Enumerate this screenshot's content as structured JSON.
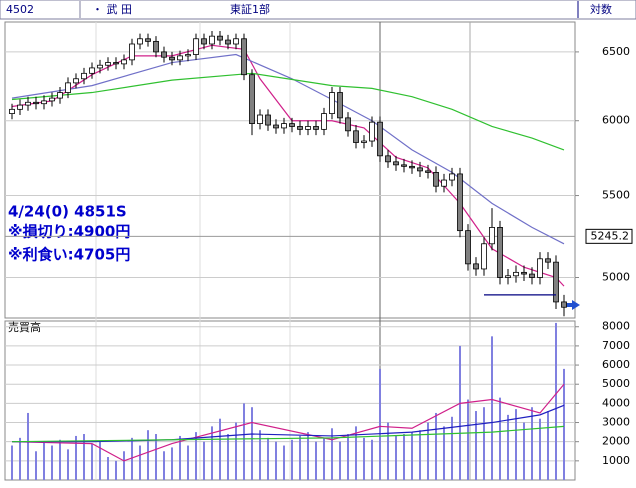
{
  "header": {
    "code": "4502",
    "name": "・ 武 田",
    "market": "東証1部",
    "scale_label": "対数"
  },
  "chart_data": [
    {
      "type": "candlestick",
      "log_scale": true,
      "grid": true,
      "ylim": [
        4770,
        6730
      ],
      "yticks": [
        5000,
        5500,
        6000,
        6500
      ],
      "up_color": "#ffffff",
      "down_color": "#808080",
      "open": [
        6050,
        6080,
        6110,
        6130,
        6120,
        6140,
        6160,
        6200,
        6270,
        6300,
        6340,
        6380,
        6400,
        6420,
        6410,
        6440,
        6560,
        6600,
        6580,
        6500,
        6460,
        6440,
        6470,
        6480,
        6600,
        6560,
        6620,
        6590,
        6560,
        6600,
        6330,
        5980,
        6040,
        5970,
        5950,
        5980,
        5960,
        5940,
        5960,
        5940,
        6050,
        6200,
        6020,
        5930,
        5850,
        5860,
        5990,
        5760,
        5720,
        5700,
        5690,
        5680,
        5660,
        5650,
        5560,
        5600,
        5640,
        5280,
        5080,
        5050,
        5200,
        5300,
        5000,
        5010,
        5030,
        5020,
        5000,
        5110,
        5090,
        4860
      ],
      "high": [
        6120,
        6150,
        6170,
        6170,
        6180,
        6200,
        6240,
        6310,
        6340,
        6380,
        6420,
        6440,
        6460,
        6460,
        6480,
        6600,
        6640,
        6640,
        6620,
        6540,
        6500,
        6510,
        6520,
        6640,
        6640,
        6660,
        6660,
        6630,
        6640,
        6640,
        6370,
        6080,
        6080,
        6010,
        6020,
        6020,
        6000,
        6000,
        6000,
        6090,
        6240,
        6240,
        6060,
        5970,
        5900,
        6030,
        6030,
        5800,
        5760,
        5740,
        5730,
        5720,
        5700,
        5690,
        5640,
        5680,
        5680,
        5320,
        5120,
        5240,
        5420,
        5340,
        5050,
        5070,
        5070,
        5060,
        5150,
        5150,
        5130,
        4900
      ],
      "low": [
        6010,
        6040,
        6070,
        6080,
        6080,
        6100,
        6120,
        6160,
        6230,
        6260,
        6300,
        6340,
        6360,
        6370,
        6370,
        6400,
        6520,
        6540,
        6460,
        6420,
        6400,
        6400,
        6430,
        6440,
        6520,
        6520,
        6550,
        6520,
        6520,
        6290,
        5900,
        5940,
        5930,
        5910,
        5910,
        5920,
        5900,
        5900,
        5900,
        5900,
        6010,
        5980,
        5890,
        5810,
        5810,
        5820,
        5720,
        5680,
        5660,
        5650,
        5640,
        5620,
        5610,
        5520,
        5520,
        5560,
        5240,
        5040,
        5010,
        5010,
        5160,
        4960,
        4960,
        4970,
        4980,
        4960,
        4960,
        5050,
        4820,
        4780
      ],
      "close": [
        6080,
        6110,
        6130,
        6120,
        6140,
        6160,
        6200,
        6270,
        6300,
        6340,
        6380,
        6400,
        6420,
        6410,
        6440,
        6560,
        6600,
        6580,
        6500,
        6460,
        6440,
        6470,
        6480,
        6600,
        6560,
        6620,
        6590,
        6560,
        6600,
        6330,
        5980,
        6040,
        5970,
        5950,
        5980,
        5960,
        5940,
        5960,
        5940,
        6050,
        6200,
        6020,
        5930,
        5850,
        5860,
        5990,
        5760,
        5720,
        5700,
        5690,
        5680,
        5660,
        5650,
        5560,
        5600,
        5640,
        5280,
        5080,
        5050,
        5200,
        5300,
        5000,
        5010,
        5030,
        5020,
        5000,
        5110,
        5090,
        4860,
        4830
      ],
      "moving_averages": [
        {
          "color": "#d0208a",
          "x": [
            0,
            5,
            10,
            15,
            20,
            25,
            29,
            31,
            35,
            40,
            44,
            48,
            52,
            56,
            60,
            64,
            68,
            69
          ],
          "values": [
            6100,
            6140,
            6330,
            6470,
            6470,
            6550,
            6520,
            6300,
            6000,
            6000,
            5950,
            5750,
            5680,
            5450,
            5170,
            5060,
            5000,
            4950
          ]
        },
        {
          "color": "#7070c8",
          "x": [
            0,
            10,
            20,
            28,
            35,
            40,
            45,
            50,
            55,
            60,
            65,
            69
          ],
          "values": [
            6160,
            6250,
            6420,
            6480,
            6300,
            6150,
            6000,
            5800,
            5650,
            5450,
            5300,
            5200
          ]
        },
        {
          "color": "#30c030",
          "x": [
            0,
            10,
            20,
            30,
            40,
            45,
            50,
            55,
            60,
            65,
            69
          ],
          "values": [
            6150,
            6200,
            6290,
            6340,
            6250,
            6230,
            6170,
            6080,
            5960,
            5880,
            5800
          ]
        }
      ],
      "price_marker": 5245.2,
      "stop_line": 4900,
      "annotations": [
        "4/24(0) 4851S",
        "※損切り:4900円",
        "※利食い:4705円"
      ]
    },
    {
      "type": "bar",
      "title": "売買高",
      "color": "#8080e0",
      "ylim": [
        0,
        8300
      ],
      "yticks": [
        1000,
        2000,
        3000,
        4000,
        5000,
        6000,
        7000,
        8000
      ],
      "values": [
        1800,
        2200,
        3500,
        1500,
        2000,
        1800,
        2100,
        1600,
        2300,
        2400,
        1900,
        2000,
        1200,
        1000,
        1500,
        2200,
        1800,
        2600,
        2400,
        1500,
        1700,
        2300,
        1800,
        2500,
        2000,
        2800,
        3200,
        2400,
        3000,
        4000,
        3800,
        2600,
        2200,
        2000,
        1800,
        2100,
        2300,
        2500,
        2000,
        2200,
        2700,
        2000,
        2400,
        2800,
        2200,
        2100,
        5800,
        3000,
        2300,
        2400,
        2500,
        2600,
        3000,
        3500,
        2800,
        3300,
        7000,
        4200,
        3600,
        3800,
        7500,
        4300,
        3400,
        3700,
        3000,
        3800,
        3200,
        3600,
        8200,
        5800
      ],
      "moving_averages": [
        {
          "color": "#d0208a",
          "x": [
            0,
            10,
            14,
            20,
            30,
            40,
            46,
            50,
            56,
            60,
            66,
            69
          ],
          "values": [
            2000,
            1900,
            1000,
            1900,
            3000,
            2100,
            2800,
            2700,
            4000,
            4200,
            3500,
            5000
          ]
        },
        {
          "color": "#2020c0",
          "x": [
            0,
            10,
            20,
            30,
            40,
            50,
            60,
            66,
            69
          ],
          "values": [
            2000,
            2000,
            2100,
            2400,
            2300,
            2500,
            3000,
            3400,
            3900
          ]
        },
        {
          "color": "#30c030",
          "x": [
            0,
            20,
            40,
            60,
            69
          ],
          "values": [
            2000,
            2100,
            2200,
            2500,
            2800
          ]
        }
      ]
    }
  ]
}
